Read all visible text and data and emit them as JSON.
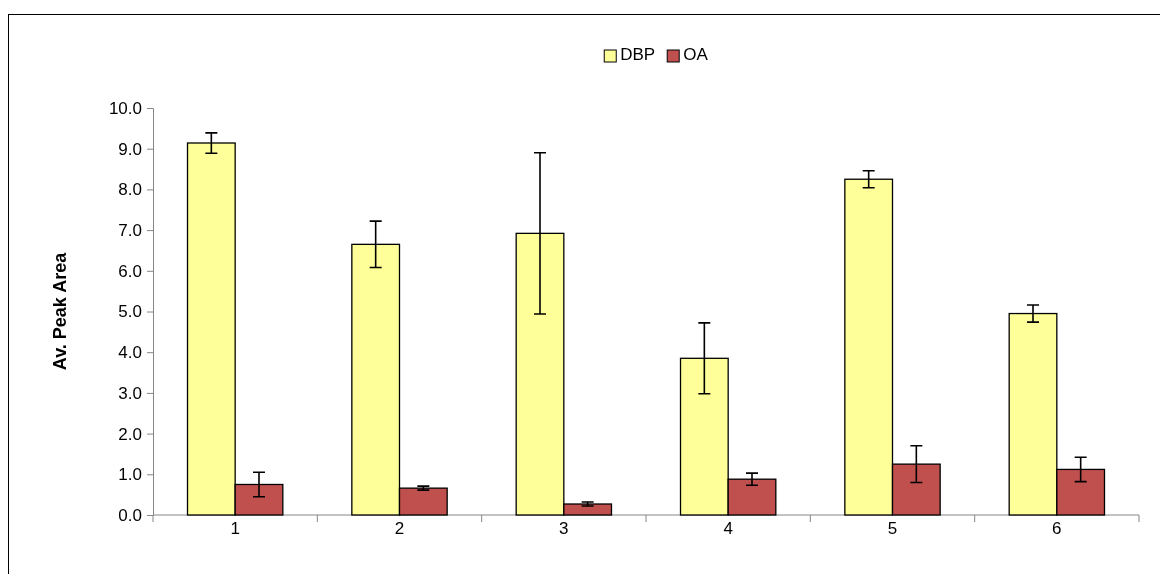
{
  "chart_data": {
    "type": "bar",
    "ylabel": "Av. Peak Area",
    "categories": [
      "1",
      "2",
      "3",
      "4",
      "5",
      "6"
    ],
    "series": [
      {
        "name": "DBP",
        "color": "#ffff99",
        "values": [
          9.14,
          6.65,
          6.92,
          3.85,
          8.25,
          4.95
        ],
        "errors": [
          0.25,
          0.57,
          1.98,
          0.87,
          0.21,
          0.21
        ]
      },
      {
        "name": "OA",
        "color": "#c0504d",
        "values": [
          0.75,
          0.66,
          0.27,
          0.88,
          1.25,
          1.12
        ],
        "errors": [
          0.3,
          0.05,
          0.05,
          0.15,
          0.45,
          0.3
        ]
      }
    ],
    "ylim": [
      0,
      10
    ],
    "yticks": [
      {
        "value": 0,
        "label": "0.0"
      },
      {
        "value": 1,
        "label": "1.0"
      },
      {
        "value": 2,
        "label": "2.0"
      },
      {
        "value": 3,
        "label": "3.0"
      },
      {
        "value": 4,
        "label": "4.0"
      },
      {
        "value": 5,
        "label": "5.0"
      },
      {
        "value": 6,
        "label": "6.0"
      },
      {
        "value": 7,
        "label": "7.0"
      },
      {
        "value": 8,
        "label": "8.0"
      },
      {
        "value": 9,
        "label": "9.0"
      },
      {
        "value": 10,
        "label": "10.0"
      }
    ],
    "grid": false,
    "legend": "top"
  }
}
